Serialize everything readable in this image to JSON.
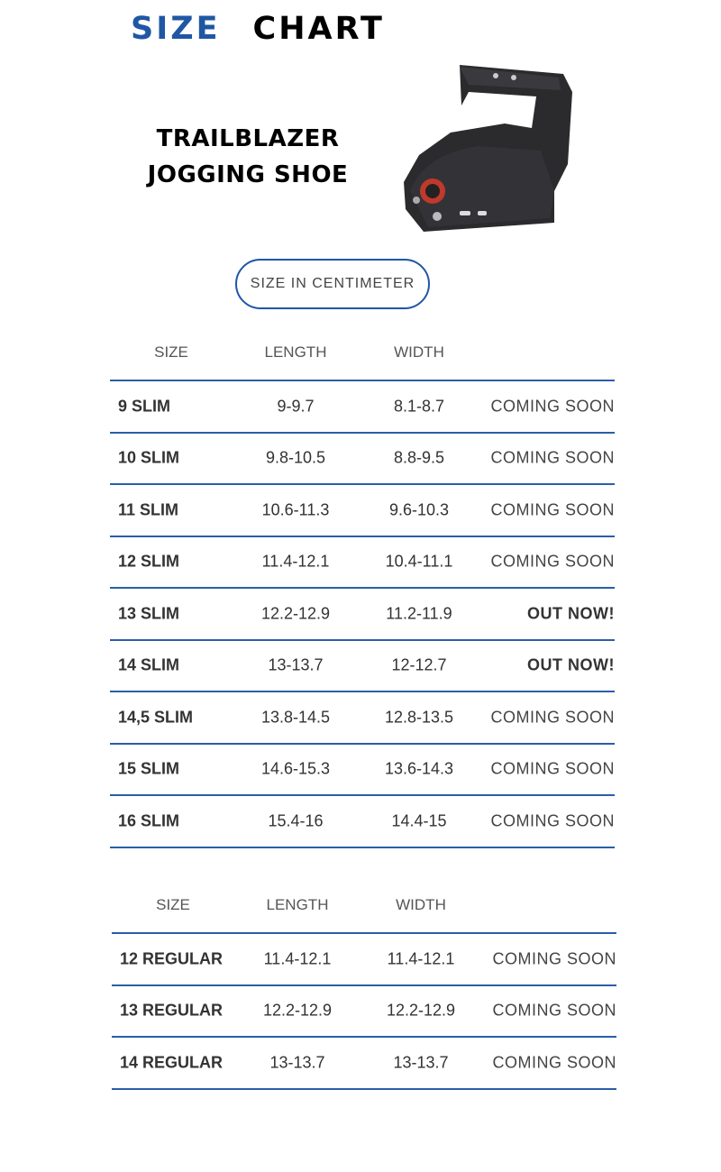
{
  "header": {
    "title_part1": "SIZE",
    "title_part2": "CHART"
  },
  "product": {
    "name_line1": "TRAILBLAZER",
    "name_line2": "JOGGING SHOE"
  },
  "colors": {
    "accent": "#1f57a4",
    "divider": "#2a5ea8"
  },
  "unit_badge": "SIZE IN CENTIMETER",
  "tables": [
    {
      "headers": [
        "SIZE",
        "LENGTH",
        "WIDTH",
        ""
      ],
      "rows": [
        [
          "9 SLIM",
          "9-9.7",
          "8.1-8.7",
          "COMING SOON"
        ],
        [
          "10 SLIM",
          "9.8-10.5",
          "8.8-9.5",
          "COMING SOON"
        ],
        [
          "11 SLIM",
          "10.6-11.3",
          "9.6-10.3",
          "COMING SOON"
        ],
        [
          "12 SLIM",
          "11.4-12.1",
          "10.4-11.1",
          "COMING SOON"
        ],
        [
          "13 SLIM",
          "12.2-12.9",
          "11.2-11.9",
          "OUT NOW!"
        ],
        [
          "14 SLIM",
          "13-13.7",
          "12-12.7",
          "OUT NOW!"
        ],
        [
          "14,5 SLIM",
          "13.8-14.5",
          "12.8-13.5",
          "COMING SOON"
        ],
        [
          "15 SLIM",
          "14.6-15.3",
          "13.6-14.3",
          "COMING SOON"
        ],
        [
          "16 SLIM",
          "15.4-16",
          "14.4-15",
          "COMING SOON"
        ]
      ]
    },
    {
      "headers": [
        "SIZE",
        "LENGTH",
        "WIDTH",
        ""
      ],
      "rows": [
        [
          "12 REGULAR",
          "11.4-12.1",
          "11.4-12.1",
          "COMING SOON"
        ],
        [
          "13 REGULAR",
          "12.2-12.9",
          "12.2-12.9",
          "COMING SOON"
        ],
        [
          "14 REGULAR",
          "13-13.7",
          "13-13.7",
          "COMING SOON"
        ]
      ]
    }
  ]
}
